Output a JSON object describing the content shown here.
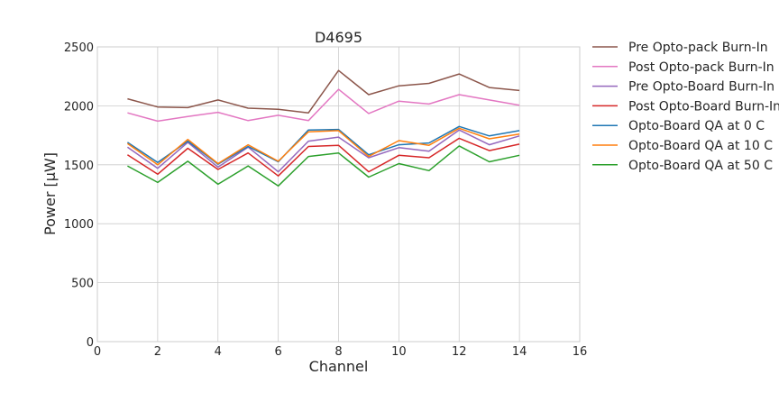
{
  "chart_data": {
    "type": "line",
    "title": "D4695",
    "xlabel": "Channel",
    "ylabel": "Power [μW]",
    "xlim": [
      0,
      16
    ],
    "ylim": [
      0,
      2500
    ],
    "xticks": [
      0,
      2,
      4,
      6,
      8,
      10,
      12,
      14,
      16
    ],
    "yticks": [
      0,
      500,
      1000,
      1500,
      2000,
      2500
    ],
    "grid": true,
    "legend_position": "outside-right",
    "x": [
      1,
      2,
      3,
      4,
      5,
      6,
      7,
      8,
      9,
      10,
      11,
      12,
      13,
      14
    ],
    "series": [
      {
        "name": "Pre Opto-pack Burn-In",
        "color": "#8c564b",
        "values": [
          2060,
          1990,
          1985,
          2050,
          1980,
          1970,
          1940,
          2300,
          2095,
          2170,
          2190,
          2270,
          2155,
          2130
        ]
      },
      {
        "name": "Post Opto-pack Burn-In",
        "color": "#e377c2",
        "values": [
          1940,
          1870,
          1910,
          1945,
          1875,
          1920,
          1875,
          2140,
          1935,
          2040,
          2015,
          2095,
          2050,
          2005
        ]
      },
      {
        "name": "Pre Opto-Board Burn-In",
        "color": "#9467bd",
        "values": [
          1650,
          1470,
          1690,
          1480,
          1650,
          1440,
          1700,
          1735,
          1560,
          1645,
          1615,
          1795,
          1670,
          1745
        ]
      },
      {
        "name": "Post Opto-Board Burn-In",
        "color": "#d62728",
        "values": [
          1585,
          1420,
          1640,
          1460,
          1600,
          1405,
          1655,
          1665,
          1440,
          1580,
          1560,
          1725,
          1620,
          1675
        ]
      },
      {
        "name": "Opto-Board QA at 0 C",
        "color": "#1f77b4",
        "values": [
          1690,
          1520,
          1700,
          1505,
          1655,
          1525,
          1795,
          1800,
          1585,
          1670,
          1685,
          1825,
          1745,
          1790
        ]
      },
      {
        "name": "Opto-Board QA at 10 C",
        "color": "#ff7f0e",
        "values": [
          1680,
          1500,
          1715,
          1510,
          1670,
          1530,
          1780,
          1790,
          1570,
          1705,
          1665,
          1810,
          1720,
          1760
        ]
      },
      {
        "name": "Opto-Board QA at 50 C",
        "color": "#2ca02c",
        "values": [
          1490,
          1350,
          1530,
          1335,
          1490,
          1320,
          1570,
          1600,
          1395,
          1510,
          1450,
          1660,
          1525,
          1580
        ]
      }
    ]
  }
}
